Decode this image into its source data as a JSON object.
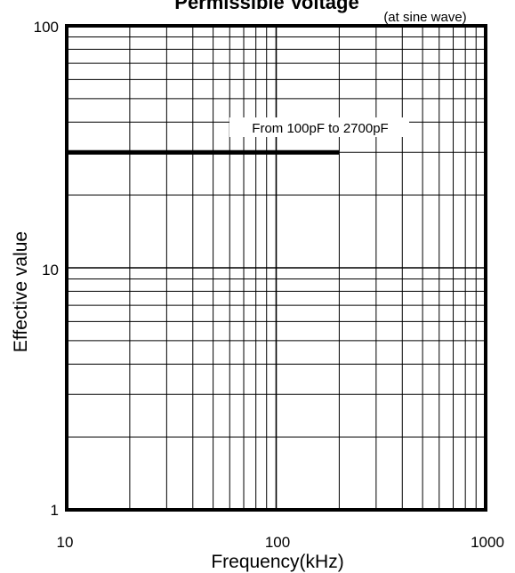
{
  "chart_data": {
    "type": "line",
    "title": "Permissible Voltage",
    "subtitle": "(at sine wave)",
    "xlabel": "Frequency(kHz)",
    "ylabel": "Effective value",
    "x_scale": "log",
    "y_scale": "log",
    "xlim": [
      10,
      1000
    ],
    "ylim": [
      1,
      100
    ],
    "x_ticks": [
      "10",
      "100",
      "1000"
    ],
    "y_ticks": [
      "100",
      "10",
      "1"
    ],
    "grid": true,
    "series": [
      {
        "x": [
          10,
          200
        ],
        "y": [
          30,
          30
        ]
      }
    ],
    "annotations": [
      {
        "text": "From 100pF to 2700pF"
      }
    ]
  }
}
